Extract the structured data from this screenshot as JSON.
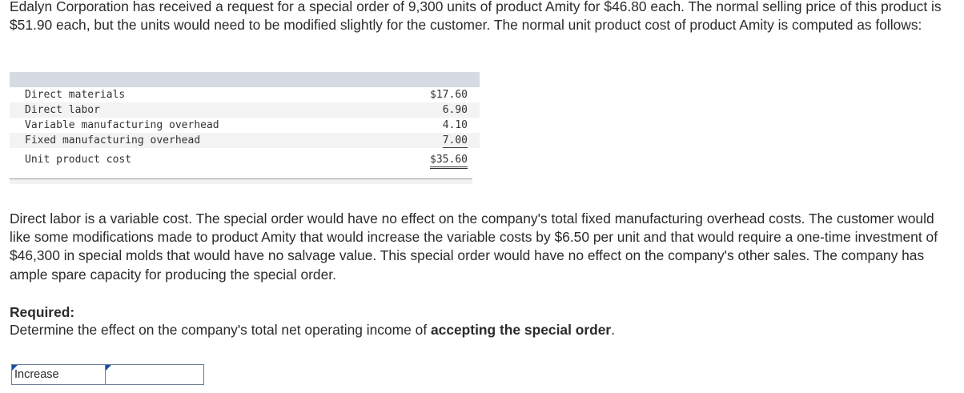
{
  "problem": {
    "intro": "Edalyn Corporation has received a request for a special order of 9,300 units of product Amity for $46.80 each. The normal selling price of this product is $51.90 each, but the units would need to be modified slightly for the customer. The normal unit product cost of product Amity is computed as follows:",
    "details": "Direct labor is a variable cost. The special order would have no effect on the company's total fixed manufacturing overhead costs. The customer would like some modifications made to product Amity that would increase the variable costs by $6.50 per unit and that would require a one-time investment of $46,300 in special molds that would have no salvage value. This special order would have no effect on the company's other sales. The company has ample spare capacity for producing the special order.",
    "required_label": "Required:",
    "required_text_prefix": "Determine the effect on the company's total net operating income of ",
    "required_text_bold": "accepting the special order",
    "required_text_suffix": "."
  },
  "cost_table": {
    "rows": [
      {
        "label": "Direct materials",
        "value": "$17.60"
      },
      {
        "label": "Direct labor",
        "value": "6.90"
      },
      {
        "label": "Variable manufacturing overhead",
        "value": "4.10"
      },
      {
        "label": "Fixed manufacturing overhead",
        "value": "7.00"
      },
      {
        "label": "Unit product cost",
        "value": "$35.60"
      }
    ]
  },
  "answer": {
    "selected": "Increase",
    "amount": ""
  }
}
